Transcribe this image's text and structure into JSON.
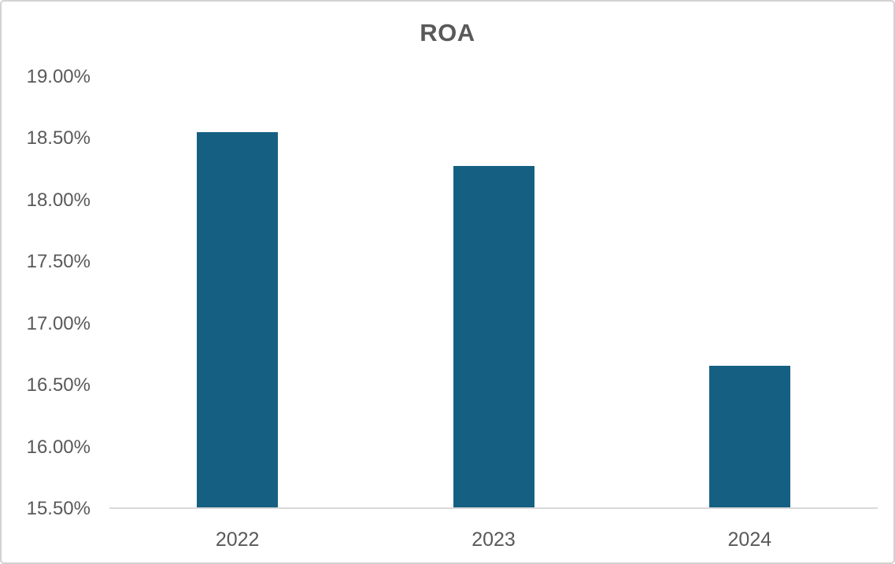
{
  "chart_data": {
    "type": "bar",
    "title": "ROA",
    "categories": [
      "2022",
      "2023",
      "2024"
    ],
    "values": [
      18.55,
      18.28,
      16.65
    ],
    "value_unit": "percent",
    "y_tick_labels": [
      "19.00%",
      "18.50%",
      "18.00%",
      "17.50%",
      "17.00%",
      "16.50%",
      "16.00%",
      "15.50%"
    ],
    "ylim": [
      15.5,
      19.0
    ],
    "xlabel": "",
    "ylabel": "",
    "grid": false,
    "legend": false,
    "colors": {
      "bar": "#156082",
      "axis_line": "#d9d9d9",
      "tick_labels": "#595959",
      "title": "#595959",
      "frame_border": "#d2d2d2",
      "background": "#ffffff"
    }
  }
}
